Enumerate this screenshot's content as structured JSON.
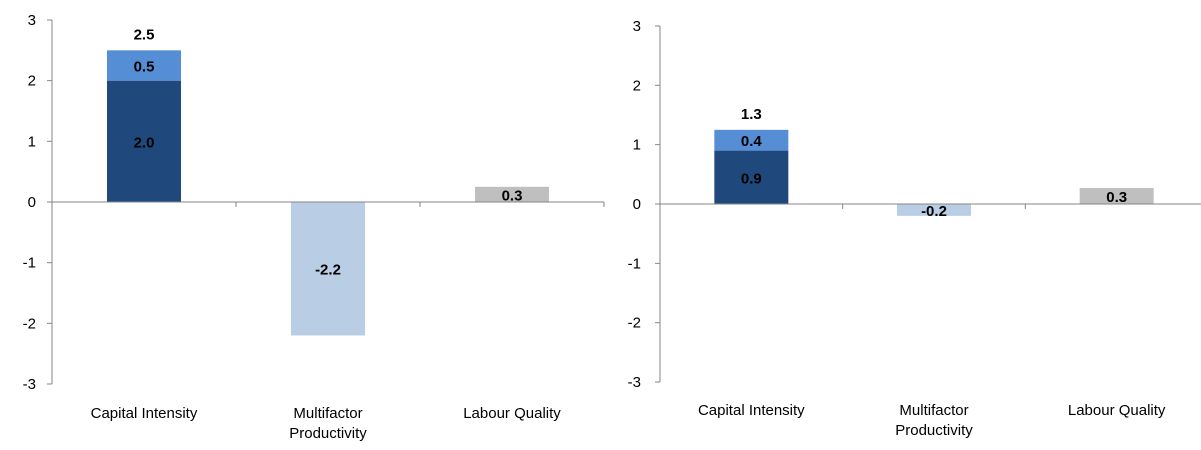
{
  "colors": {
    "dark_blue": "#1F487C",
    "mid_blue": "#558ED5",
    "light_blue": "#B9CDE5",
    "gray": "#BFBFBF",
    "axis": "#868686"
  },
  "chart_data": [
    {
      "type": "bar",
      "stacked": true,
      "ylim": [
        -3,
        3
      ],
      "yticks": [
        "3",
        "2",
        "1",
        "0",
        "-1",
        "-2",
        "-3"
      ],
      "categories": [
        [
          "Capital Intensity"
        ],
        [
          "Multifactor",
          "Productivity"
        ],
        [
          "Labour Quality"
        ]
      ],
      "bars": [
        {
          "category": "Capital Intensity",
          "segments": [
            {
              "value": 2.0,
              "label": "2.0",
              "color": "#1F487C"
            },
            {
              "value": 0.5,
              "label": "0.5",
              "color": "#558ED5"
            }
          ],
          "total_label": "2.5"
        },
        {
          "category": "Multifactor Productivity",
          "segments": [
            {
              "value": -2.2,
              "label": "-2.2",
              "color": "#B9CDE5"
            }
          ]
        },
        {
          "category": "Labour Quality",
          "segments": [
            {
              "value": 0.25,
              "label": "0.3",
              "color": "#BFBFBF"
            }
          ]
        }
      ],
      "grid": false
    },
    {
      "type": "bar",
      "stacked": true,
      "ylim": [
        -3,
        3
      ],
      "yticks": [
        "3",
        "2",
        "1",
        "0",
        "-1",
        "-2",
        "-3"
      ],
      "categories": [
        [
          "Capital Intensity"
        ],
        [
          "Multifactor",
          "Productivity"
        ],
        [
          "Labour Quality"
        ]
      ],
      "bars": [
        {
          "category": "Capital Intensity",
          "segments": [
            {
              "value": 0.9,
              "label": "0.9",
              "color": "#1F487C"
            },
            {
              "value": 0.35,
              "label": "0.4",
              "color": "#558ED5"
            }
          ],
          "total_label": "1.3"
        },
        {
          "category": "Multifactor Productivity",
          "segments": [
            {
              "value": -0.2,
              "label": "-0.2",
              "color": "#B9CDE5"
            }
          ]
        },
        {
          "category": "Labour Quality",
          "segments": [
            {
              "value": 0.27,
              "label": "0.3",
              "color": "#BFBFBF"
            }
          ]
        }
      ],
      "grid": false
    }
  ]
}
